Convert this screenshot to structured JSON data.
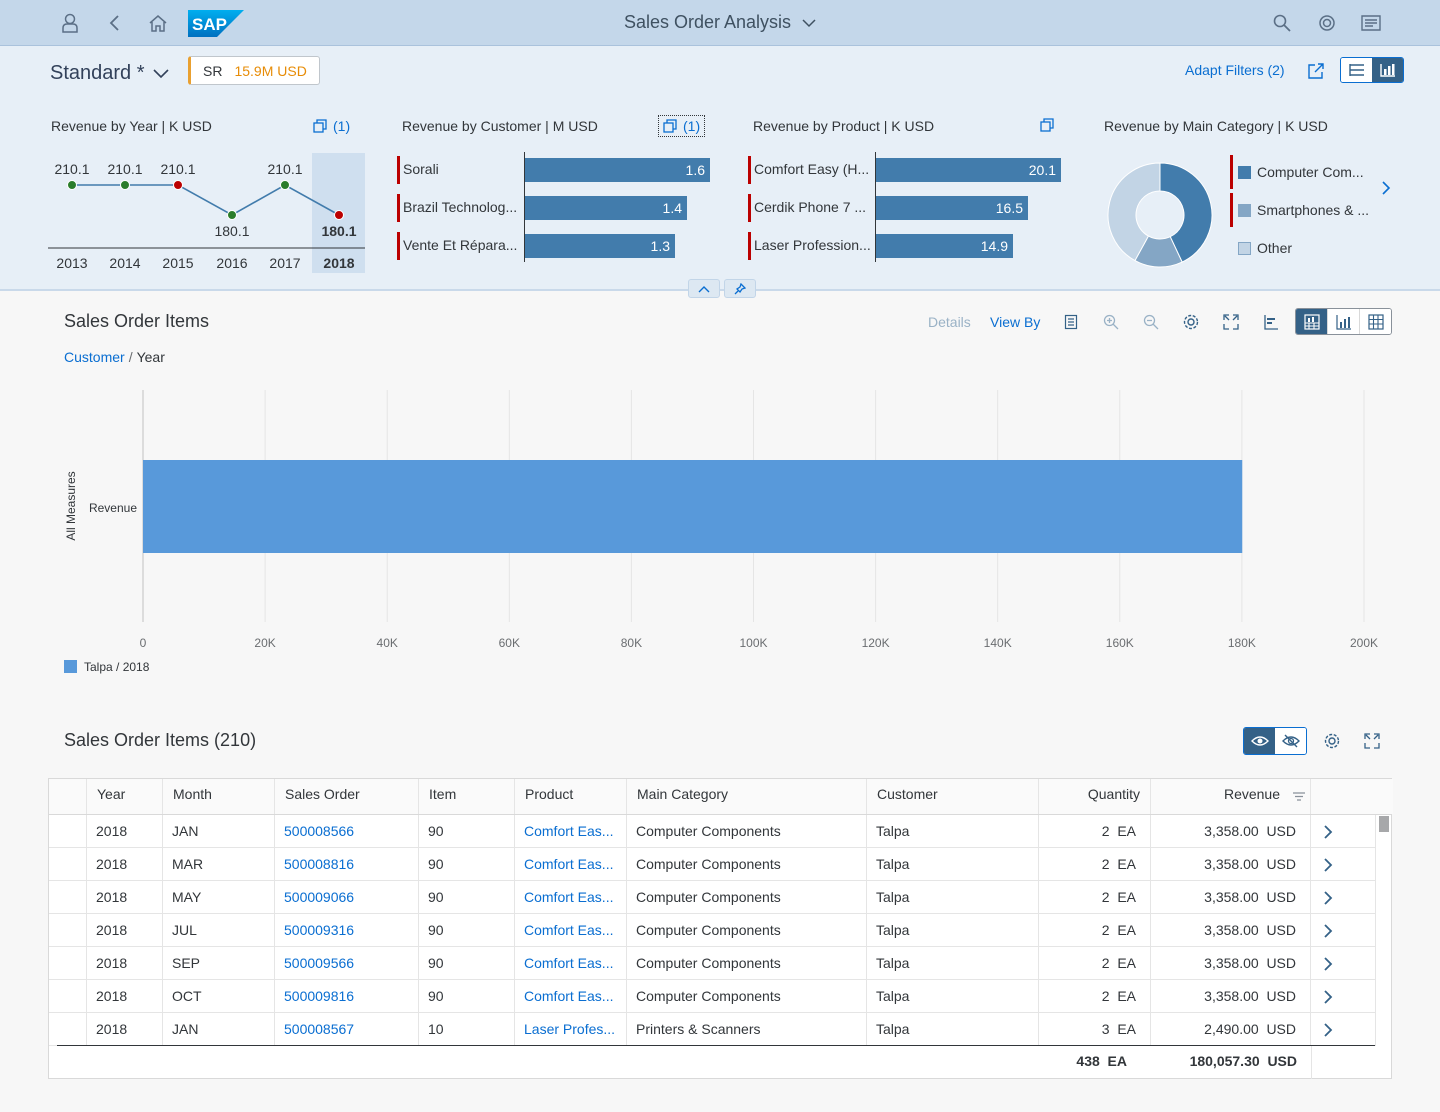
{
  "shell": {
    "title": "Sales Order Analysis",
    "logo_text": "SAP"
  },
  "header": {
    "variant": "Standard *",
    "filter_key": "SR",
    "filter_value": "15.9M USD",
    "adapt_filters": "Adapt Filters (2)"
  },
  "cards": {
    "year": {
      "title": "Revenue by Year  | K USD",
      "count": "(1)",
      "chart_data": {
        "type": "line",
        "x": [
          "2013",
          "2014",
          "2015",
          "2016",
          "2017",
          "2018"
        ],
        "values": [
          210.1,
          210.1,
          210.1,
          180.1,
          210.1,
          180.1
        ],
        "labels": [
          "210.1",
          "210.1",
          "210.1",
          "180.1",
          "210.1",
          "180.1"
        ],
        "point_colors": [
          "#2b7d2b",
          "#2b7d2b",
          "#bb0000",
          "#2b7d2b",
          "#2b7d2b",
          "#bb0000"
        ],
        "selected": "2018"
      }
    },
    "customer": {
      "title": "Revenue by Customer  | M USD",
      "count": "(1)",
      "chart_data": {
        "type": "bar",
        "categories": [
          "Sorali",
          "Brazil Technolog...",
          "Vente Et Répara..."
        ],
        "values": [
          1.6,
          1.4,
          1.3
        ],
        "labels": [
          "1.6",
          "1.4",
          "1.3"
        ]
      }
    },
    "product": {
      "title": "Revenue by Product  | K USD",
      "chart_data": {
        "type": "bar",
        "categories": [
          "Comfort Easy (H...",
          "Cerdik Phone 7 ...",
          "Laser Profession..."
        ],
        "values": [
          20.1,
          16.5,
          14.9
        ],
        "labels": [
          "20.1",
          "16.5",
          "14.9"
        ]
      }
    },
    "category": {
      "title": "Revenue by Main Category  | K USD",
      "chart_data": {
        "type": "pie",
        "categories": [
          "Computer Com...",
          "Smartphones & ...",
          "Other"
        ],
        "values": [
          43,
          15,
          42
        ],
        "colors": [
          "#427cac",
          "#84a6c5",
          "#c2d4e5"
        ]
      }
    }
  },
  "chart": {
    "title": "Sales Order Items",
    "details": "Details",
    "view_by": "View By",
    "breadcrumb_link": "Customer",
    "breadcrumb_current": "Year",
    "chart_data": {
      "type": "bar",
      "orientation": "horizontal",
      "categories": [
        "Revenue"
      ],
      "series": [
        {
          "name": "Talpa / 2018",
          "values": [
            180057.3
          ]
        }
      ],
      "ylabel": "All Measures",
      "xlim": [
        0,
        200000
      ],
      "x_ticks": [
        "0",
        "20K",
        "40K",
        "60K",
        "80K",
        "100K",
        "120K",
        "140K",
        "160K",
        "180K",
        "200K"
      ],
      "grid": true,
      "legend": "bottom-left",
      "color": "#5899da"
    }
  },
  "table": {
    "title": "Sales Order Items (210)",
    "columns": [
      "Year",
      "Month",
      "Sales Order",
      "Item",
      "Product",
      "Main Category",
      "Customer",
      "Quantity",
      "Revenue"
    ],
    "rows": [
      {
        "year": "2018",
        "month": "JAN",
        "order": "500008566",
        "item": "90",
        "product": "Comfort Eas...",
        "category": "Computer Components",
        "customer": "Talpa",
        "qty": "2",
        "qty_unit": "EA",
        "revenue": "3,358.00",
        "currency": "USD"
      },
      {
        "year": "2018",
        "month": "MAR",
        "order": "500008816",
        "item": "90",
        "product": "Comfort Eas...",
        "category": "Computer Components",
        "customer": "Talpa",
        "qty": "2",
        "qty_unit": "EA",
        "revenue": "3,358.00",
        "currency": "USD"
      },
      {
        "year": "2018",
        "month": "MAY",
        "order": "500009066",
        "item": "90",
        "product": "Comfort Eas...",
        "category": "Computer Components",
        "customer": "Talpa",
        "qty": "2",
        "qty_unit": "EA",
        "revenue": "3,358.00",
        "currency": "USD"
      },
      {
        "year": "2018",
        "month": "JUL",
        "order": "500009316",
        "item": "90",
        "product": "Comfort Eas...",
        "category": "Computer Components",
        "customer": "Talpa",
        "qty": "2",
        "qty_unit": "EA",
        "revenue": "3,358.00",
        "currency": "USD"
      },
      {
        "year": "2018",
        "month": "SEP",
        "order": "500009566",
        "item": "90",
        "product": "Comfort Eas...",
        "category": "Computer Components",
        "customer": "Talpa",
        "qty": "2",
        "qty_unit": "EA",
        "revenue": "3,358.00",
        "currency": "USD"
      },
      {
        "year": "2018",
        "month": "OCT",
        "order": "500009816",
        "item": "90",
        "product": "Comfort Eas...",
        "category": "Computer Components",
        "customer": "Talpa",
        "qty": "2",
        "qty_unit": "EA",
        "revenue": "3,358.00",
        "currency": "USD"
      },
      {
        "year": "2018",
        "month": "JAN",
        "order": "500008567",
        "item": "10",
        "product": "Laser Profes...",
        "category": "Printers & Scanners",
        "customer": "Talpa",
        "qty": "3",
        "qty_unit": "EA",
        "revenue": "2,490.00",
        "currency": "USD"
      }
    ],
    "total_qty": "438",
    "total_qty_unit": "EA",
    "total_revenue": "180,057.30",
    "total_currency": "USD"
  }
}
